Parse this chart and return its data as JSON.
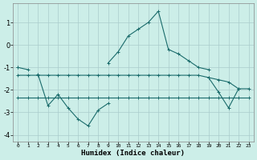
{
  "xlabel": "Humidex (Indice chaleur)",
  "x": [
    0,
    1,
    2,
    3,
    4,
    5,
    6,
    7,
    8,
    9,
    10,
    11,
    12,
    13,
    14,
    15,
    16,
    17,
    18,
    19,
    20,
    21,
    22,
    23
  ],
  "line1": [
    -1.0,
    -1.1,
    null,
    null,
    null,
    null,
    null,
    null,
    null,
    -0.8,
    -0.3,
    0.4,
    0.7,
    1.0,
    1.5,
    -0.2,
    -0.4,
    -0.7,
    -1.0,
    -1.1,
    null,
    null,
    null,
    null
  ],
  "line2": [
    -1.0,
    null,
    -1.3,
    -2.7,
    -2.2,
    -2.8,
    -3.3,
    -3.6,
    -2.9,
    -2.6,
    null,
    null,
    null,
    null,
    null,
    null,
    null,
    null,
    null,
    -1.45,
    -2.1,
    -2.8,
    -1.95,
    null
  ],
  "line3": [
    -1.35,
    -1.35,
    -1.35,
    -1.35,
    -1.35,
    -1.35,
    -1.35,
    -1.35,
    -1.35,
    -1.35,
    -1.35,
    -1.35,
    -1.35,
    -1.35,
    -1.35,
    -1.35,
    -1.35,
    -1.35,
    -1.35,
    -1.45,
    -1.55,
    -1.65,
    -1.95,
    -1.95
  ],
  "line4": [
    -2.35,
    -2.35,
    -2.35,
    -2.35,
    -2.35,
    -2.35,
    -2.35,
    -2.35,
    -2.35,
    -2.35,
    -2.35,
    -2.35,
    -2.35,
    -2.35,
    -2.35,
    -2.35,
    -2.35,
    -2.35,
    -2.35,
    -2.35,
    -2.35,
    -2.35,
    -2.35,
    -2.35
  ],
  "line_color": "#1a6b6b",
  "bg_color": "#cceee8",
  "grid_color": "#aacccc",
  "ylim": [
    -4.3,
    1.85
  ],
  "yticks": [
    -4,
    -3,
    -2,
    -1,
    0,
    1
  ],
  "xlim": [
    -0.5,
    23.5
  ],
  "xticks": [
    0,
    1,
    2,
    3,
    4,
    5,
    6,
    7,
    8,
    9,
    10,
    11,
    12,
    13,
    14,
    15,
    16,
    17,
    18,
    19,
    20,
    21,
    22,
    23
  ]
}
